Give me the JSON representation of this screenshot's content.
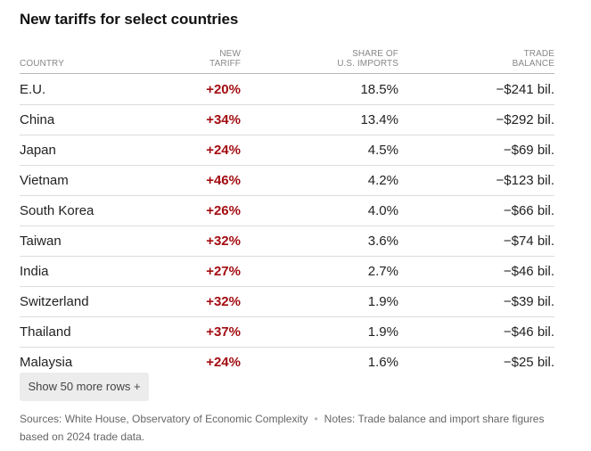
{
  "chart_data": {
    "type": "table",
    "title": "New tariffs for select countries",
    "columns": [
      {
        "key": "country",
        "label_lines": [
          "COUNTRY"
        ]
      },
      {
        "key": "tariff",
        "label_lines": [
          "NEW",
          "TARIFF"
        ]
      },
      {
        "key": "share",
        "label_lines": [
          "SHARE OF",
          "U.S. IMPORTS"
        ]
      },
      {
        "key": "balance",
        "label_lines": [
          "TRADE",
          "BALANCE"
        ]
      }
    ],
    "rows": [
      {
        "country": "E.U.",
        "tariff": "+20%",
        "share": "18.5%",
        "balance": "−$241 bil."
      },
      {
        "country": "China",
        "tariff": "+34%",
        "share": "13.4%",
        "balance": "−$292 bil."
      },
      {
        "country": "Japan",
        "tariff": "+24%",
        "share": "4.5%",
        "balance": "−$69 bil."
      },
      {
        "country": "Vietnam",
        "tariff": "+46%",
        "share": "4.2%",
        "balance": "−$123 bil."
      },
      {
        "country": "South Korea",
        "tariff": "+26%",
        "share": "4.0%",
        "balance": "−$66 bil."
      },
      {
        "country": "Taiwan",
        "tariff": "+32%",
        "share": "3.6%",
        "balance": "−$74 bil."
      },
      {
        "country": "India",
        "tariff": "+27%",
        "share": "2.7%",
        "balance": "−$46 bil."
      },
      {
        "country": "Switzerland",
        "tariff": "+32%",
        "share": "1.9%",
        "balance": "−$39 bil."
      },
      {
        "country": "Thailand",
        "tariff": "+37%",
        "share": "1.9%",
        "balance": "−$46 bil."
      },
      {
        "country": "Malaysia",
        "tariff": "+24%",
        "share": "1.6%",
        "balance": "−$25 bil."
      }
    ],
    "accent_color": "#a30d12"
  },
  "controls": {
    "show_more_label": "Show 50 more rows +"
  },
  "footer": {
    "sources": "Sources: White House, Observatory of Economic Complexity",
    "separator": "•",
    "notes": "Notes: Trade balance and import share figures based on 2024 trade data."
  }
}
